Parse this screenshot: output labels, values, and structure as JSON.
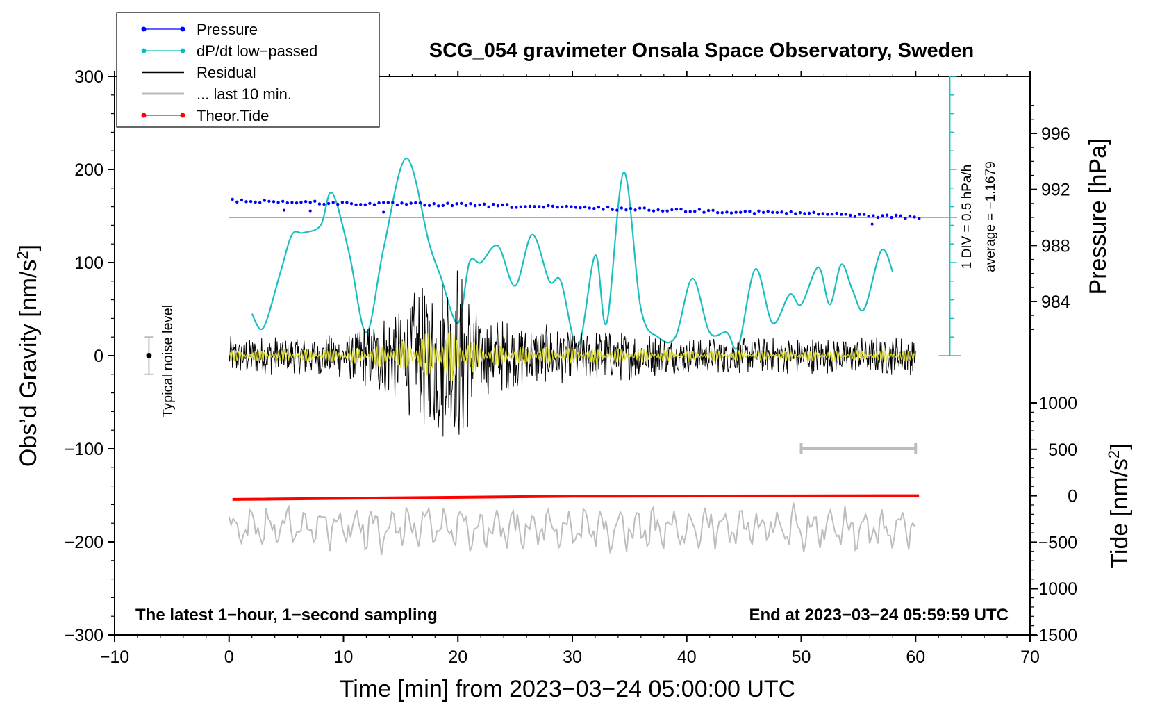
{
  "chart_data": {
    "type": "line",
    "title": "SCG_054 gravimeter Onsala Space Observatory, Sweden",
    "xlabel": "Time [min] from 2023−03−24 05:00:00 UTC",
    "ylabel": "Obs’d Gravity [nm/s²]",
    "ylabel_main": "Obs’d Gravity [nm/s",
    "ylabel_sup": "2",
    "ylabel_close": "]",
    "xlim": [
      -10,
      70
    ],
    "ylim": [
      -300,
      300
    ],
    "x_ticks": [
      "−10",
      "0",
      "10",
      "20",
      "30",
      "40",
      "50",
      "60",
      "70"
    ],
    "x_tick_values": [
      -10,
      0,
      10,
      20,
      30,
      40,
      50,
      60,
      70
    ],
    "y_ticks": [
      "300",
      "200",
      "100",
      "0",
      "−100",
      "−200",
      "−300"
    ],
    "y_tick_values": [
      300,
      200,
      100,
      0,
      -100,
      -200,
      -300
    ],
    "pressure_axis": {
      "label": "Pressure [hPa]",
      "ticks": [
        "996",
        "992",
        "988",
        "984"
      ],
      "tick_values": [
        996,
        992,
        988,
        984
      ],
      "range_hPa": [
        980,
        1000
      ]
    },
    "tide_axis": {
      "label_main": "Tide [nm/s",
      "label_sup": "2",
      "label_close": "]",
      "ticks": [
        "1000",
        "500",
        "0",
        "−500",
        "−1000",
        "−1500"
      ],
      "tick_values": [
        1000,
        500,
        0,
        -500,
        -1000,
        -1500
      ]
    },
    "dpdt_scale": {
      "div_label": "1 DIV = 0.5 hPa/h",
      "average_label": "average = −1.1679"
    },
    "noise_label": "Typical noise level",
    "noise_level_nm_s2": 20,
    "bottom_left_note": "The latest 1−hour, 1−second sampling",
    "bottom_right_note": "End at 2023−03−24 05:59:59 UTC",
    "legend": [
      {
        "name": "Pressure",
        "color": "#0000ff",
        "marker": "dot"
      },
      {
        "name": "dP/dt low−passed",
        "color": "#00c0c0",
        "marker": "dot"
      },
      {
        "name": "Residual",
        "color": "#000000",
        "marker": "none"
      },
      {
        "name": "... last 10 min.",
        "color": "#b8b8b8",
        "marker": "none"
      },
      {
        "name": "Theor.Tide",
        "color": "#ff0000",
        "marker": "dot"
      }
    ],
    "series": [
      {
        "name": "Pressure",
        "units": "hPa",
        "x": [
          0.3,
          10,
          20,
          30,
          40,
          50,
          60.3
        ],
        "values": [
          991.2,
          991.0,
          990.9,
          990.7,
          990.5,
          990.3,
          990.0
        ]
      },
      {
        "name": "dP/dt low-passed",
        "units": "y-axis nm/s² equivalent",
        "x": [
          2,
          3,
          4.5,
          5.5,
          6.5,
          8,
          9,
          10.5,
          12,
          13.5,
          15.5,
          17.5,
          18.5,
          20,
          21,
          22,
          23.5,
          25,
          26.5,
          28,
          29,
          30.5,
          32,
          33,
          34.5,
          36,
          37.5,
          39,
          40.5,
          42,
          43.5,
          44.5,
          46,
          47.5,
          49,
          50,
          51.5,
          52.5,
          53.5,
          54.5,
          55.5,
          57,
          58
        ],
        "values": [
          45,
          30,
          90,
          130,
          132,
          140,
          175,
          110,
          25,
          115,
          212,
          120,
          85,
          35,
          100,
          100,
          118,
          75,
          130,
          80,
          80,
          10,
          108,
          35,
          197,
          50,
          20,
          20,
          83,
          25,
          25,
          10,
          93,
          35,
          66,
          55,
          95,
          55,
          98,
          70,
          50,
          113,
          90
        ]
      },
      {
        "name": "Residual",
        "units": "nm/s²",
        "x": [
          0,
          5,
          10,
          15,
          17,
          19,
          20,
          22,
          25,
          30,
          35,
          40,
          50,
          60
        ],
        "values": [
          0,
          0,
          0,
          0,
          0,
          0,
          0,
          0,
          0,
          0,
          0,
          0,
          0,
          0
        ],
        "amplitude_envelope": [
          22,
          22,
          25,
          55,
          85,
          100,
          110,
          45,
          38,
          30,
          28,
          20,
          20,
          22
        ]
      },
      {
        "name": "... last 10 min.",
        "units": "nm/s² (time-scaled)",
        "offset": -185,
        "amplitude": 25
      },
      {
        "name": "Theor.Tide",
        "units": "nm/s²",
        "x": [
          0.3,
          30,
          60.3
        ],
        "values": [
          -40,
          -5,
          0
        ]
      }
    ],
    "scale_bar_x": [
      50,
      60
    ],
    "colors": {
      "pressure": "#0000ff",
      "dpdt": "#1bbfbf",
      "residual": "#000000",
      "residual_lowpass": "#d8d82a",
      "last10": "#bdbdbd",
      "tide": "#ff0000"
    }
  }
}
